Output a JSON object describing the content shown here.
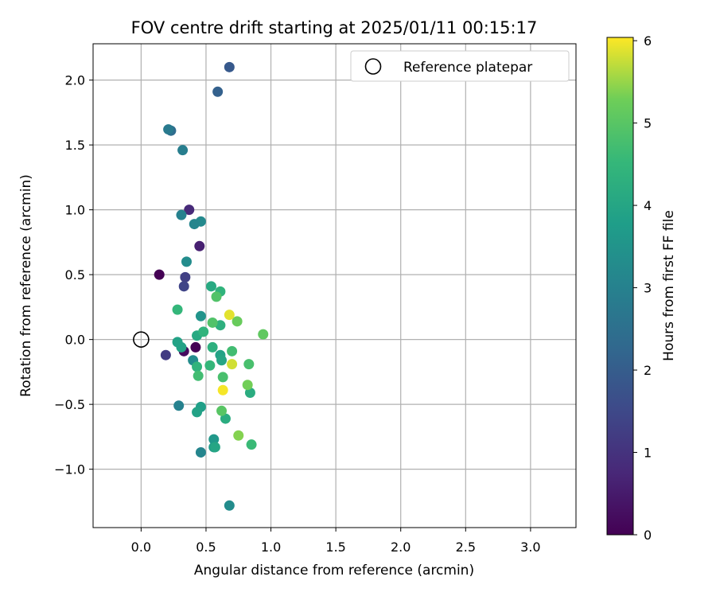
{
  "chart_data": {
    "type": "scatter",
    "title": "FOV centre drift starting at 2025/01/11 00:15:17",
    "xlabel": "Angular distance from reference (arcmin)",
    "ylabel": "Rotation from reference (arcmin)",
    "xlim": [
      -0.37,
      3.35
    ],
    "ylim": [
      -1.45,
      2.28
    ],
    "xticks": [
      0.0,
      0.5,
      1.0,
      1.5,
      2.0,
      2.5,
      3.0
    ],
    "xtick_labels": [
      "0.0",
      "0.5",
      "1.0",
      "1.5",
      "2.0",
      "2.5",
      "3.0"
    ],
    "yticks": [
      -1.0,
      -0.5,
      0.0,
      0.5,
      1.0,
      1.5,
      2.0
    ],
    "ytick_labels": [
      "−1.0",
      "−0.5",
      "0.0",
      "0.5",
      "1.0",
      "1.5",
      "2.0"
    ],
    "grid": true,
    "legend_position": "top-right",
    "legend": [
      {
        "label": "Reference platepar",
        "marker": "open-circle"
      }
    ],
    "reference_point": {
      "x": 0.0,
      "y": 0.0
    },
    "colorbar": {
      "label": "Hours from first FF file",
      "colormap": "viridis",
      "range": [
        0,
        6.04
      ],
      "ticks": [
        0,
        1,
        2,
        3,
        4,
        5,
        6
      ],
      "tick_labels": [
        "0",
        "1",
        "2",
        "3",
        "4",
        "5",
        "6"
      ]
    },
    "points": [
      {
        "x": 0.14,
        "y": 0.5,
        "c": 0.0
      },
      {
        "x": 0.42,
        "y": -0.06,
        "c": 0.0
      },
      {
        "x": 0.33,
        "y": -0.09,
        "c": 0.2
      },
      {
        "x": 0.45,
        "y": 0.72,
        "c": 0.6
      },
      {
        "x": 0.37,
        "y": 1.0,
        "c": 0.8
      },
      {
        "x": 0.19,
        "y": -0.12,
        "c": 1.2
      },
      {
        "x": 0.34,
        "y": 0.48,
        "c": 1.3
      },
      {
        "x": 0.33,
        "y": 0.41,
        "c": 1.4
      },
      {
        "x": 0.68,
        "y": 2.1,
        "c": 1.9
      },
      {
        "x": 0.59,
        "y": 1.91,
        "c": 2.1
      },
      {
        "x": 0.23,
        "y": 1.61,
        "c": 2.4
      },
      {
        "x": 0.21,
        "y": 1.62,
        "c": 2.8
      },
      {
        "x": 0.32,
        "y": 1.46,
        "c": 2.9
      },
      {
        "x": 0.31,
        "y": 0.96,
        "c": 3.0
      },
      {
        "x": 0.46,
        "y": 0.91,
        "c": 3.2
      },
      {
        "x": 0.41,
        "y": 0.89,
        "c": 3.1
      },
      {
        "x": 0.35,
        "y": 0.6,
        "c": 3.3
      },
      {
        "x": 0.29,
        "y": -0.51,
        "c": 3.0
      },
      {
        "x": 0.46,
        "y": -0.87,
        "c": 3.1
      },
      {
        "x": 0.68,
        "y": -1.28,
        "c": 3.3
      },
      {
        "x": 0.4,
        "y": -0.16,
        "c": 3.3
      },
      {
        "x": 0.46,
        "y": 0.18,
        "c": 3.5
      },
      {
        "x": 0.56,
        "y": -0.77,
        "c": 3.6
      },
      {
        "x": 0.56,
        "y": -0.83,
        "c": 3.7
      },
      {
        "x": 0.46,
        "y": -0.52,
        "c": 3.8
      },
      {
        "x": 0.43,
        "y": -0.56,
        "c": 3.9
      },
      {
        "x": 0.28,
        "y": -0.02,
        "c": 3.9
      },
      {
        "x": 0.31,
        "y": -0.06,
        "c": 3.9
      },
      {
        "x": 0.61,
        "y": -0.12,
        "c": 3.9
      },
      {
        "x": 0.62,
        "y": -0.16,
        "c": 4.0
      },
      {
        "x": 0.57,
        "y": -0.83,
        "c": 4.0
      },
      {
        "x": 0.54,
        "y": 0.41,
        "c": 4.1
      },
      {
        "x": 0.43,
        "y": 0.03,
        "c": 4.1
      },
      {
        "x": 0.65,
        "y": -0.61,
        "c": 4.2
      },
      {
        "x": 0.84,
        "y": -0.41,
        "c": 4.2
      },
      {
        "x": 0.55,
        "y": -0.06,
        "c": 4.3
      },
      {
        "x": 0.61,
        "y": 0.11,
        "c": 4.3
      },
      {
        "x": 0.43,
        "y": -0.21,
        "c": 4.4
      },
      {
        "x": 0.48,
        "y": 0.06,
        "c": 4.4
      },
      {
        "x": 0.61,
        "y": 0.37,
        "c": 4.4
      },
      {
        "x": 0.28,
        "y": 0.23,
        "c": 4.5
      },
      {
        "x": 0.53,
        "y": -0.2,
        "c": 4.5
      },
      {
        "x": 0.85,
        "y": -0.81,
        "c": 4.6
      },
      {
        "x": 0.7,
        "y": -0.09,
        "c": 4.7
      },
      {
        "x": 0.44,
        "y": -0.28,
        "c": 4.7
      },
      {
        "x": 0.63,
        "y": -0.29,
        "c": 4.8
      },
      {
        "x": 0.83,
        "y": -0.19,
        "c": 4.8
      },
      {
        "x": 0.55,
        "y": 0.13,
        "c": 4.9
      },
      {
        "x": 0.58,
        "y": 0.33,
        "c": 4.9
      },
      {
        "x": 0.62,
        "y": -0.55,
        "c": 5.0
      },
      {
        "x": 0.94,
        "y": 0.04,
        "c": 5.1
      },
      {
        "x": 0.74,
        "y": 0.14,
        "c": 5.2
      },
      {
        "x": 0.82,
        "y": -0.35,
        "c": 5.3
      },
      {
        "x": 0.75,
        "y": -0.74,
        "c": 5.4
      },
      {
        "x": 0.7,
        "y": -0.19,
        "c": 5.8
      },
      {
        "x": 0.68,
        "y": 0.19,
        "c": 5.9
      },
      {
        "x": 0.63,
        "y": -0.39,
        "c": 6.0
      }
    ]
  }
}
